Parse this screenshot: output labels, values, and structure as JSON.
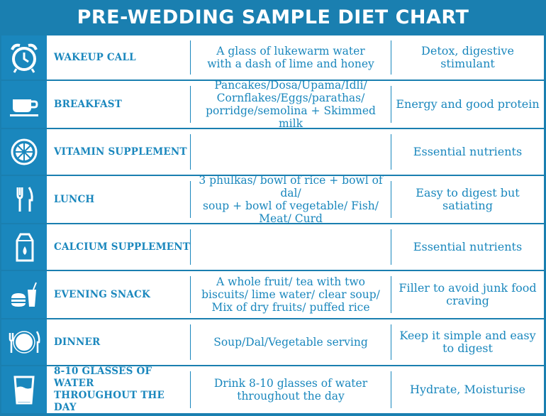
{
  "title": "PRE-WEDDING SAMPLE DIET CHART",
  "rows": [
    {
      "icon": "alarm-clock-icon",
      "label": "WAKEUP CALL",
      "content": "A glass of lukewarm water\nwith a dash of lime and honey",
      "result": "Detox, digestive stimulant"
    },
    {
      "icon": "coffee-cup-icon",
      "label": "BREAKFAST",
      "content": "Pancakes/Dosa/Upama/Idli/\nCornflakes/Eggs/parathas/\nporridge/semolina + Skimmed milk",
      "result": "Energy and good protein"
    },
    {
      "icon": "lemon-slice-icon",
      "label": "VITAMIN SUPPLEMENT",
      "content": "",
      "result": "Essential nutrients"
    },
    {
      "icon": "fork-knife-icon",
      "label": "LUNCH",
      "content": "3 phulkas/ bowl of rice + bowl of dal/\nsoup + bowl of vegetable/ Fish/\nMeat/ Curd",
      "result": "Easy to digest but satiating"
    },
    {
      "icon": "milk-carton-icon",
      "label": "CALCIUM SUPPLEMENT",
      "content": "",
      "result": "Essential nutrients"
    },
    {
      "icon": "burger-drink-icon",
      "label": "EVENING SNACK",
      "content": "A whole fruit/ tea with two\nbiscuits/ lime water/ clear soup/\nMix of dry fruits/ puffed rice",
      "result": "Filler to avoid junk food\ncraving"
    },
    {
      "icon": "plate-cutlery-icon",
      "label": "DINNER",
      "content": "Soup/Dal/Vegetable serving",
      "result": "Keep it simple and easy\nto digest"
    },
    {
      "icon": "water-glass-icon",
      "label": "8-10 GLASSES OF WATER\nTHROUGHOUT THE DAY",
      "content": "Drink 8-10 glasses of water\nthroughout the day",
      "result": "Hydrate, Moisturise"
    }
  ],
  "colors": {
    "accent": "#1a87bd",
    "background": "#1a7fb0",
    "row": "#ffffff"
  }
}
